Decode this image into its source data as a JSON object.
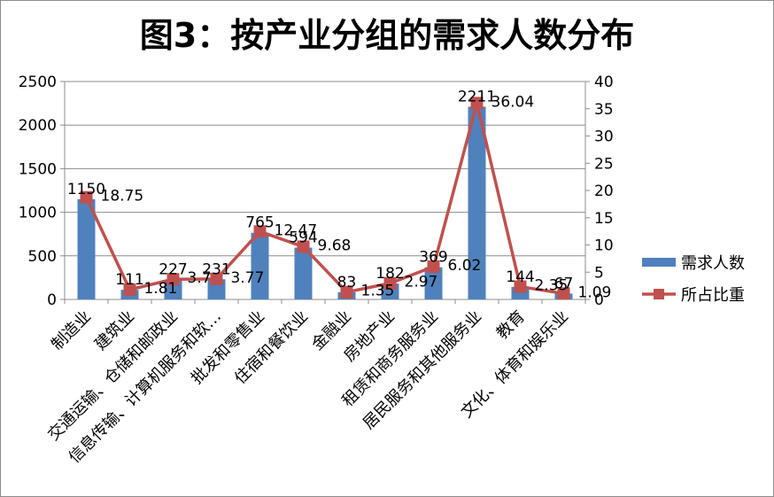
{
  "chart_data": {
    "type": "bar",
    "title": "图3：按产业分组的需求人数分布",
    "categories": [
      "制造业",
      "建筑业",
      "交通运输、仓储和邮政业",
      "信息传输、计算机服务和软…",
      "批发和零售业",
      "住宿和餐饮业",
      "金融业",
      "房地产业",
      "租赁和商务服务业",
      "居民服务和其他服务业",
      "教育",
      "文化、体育和娱乐业"
    ],
    "series": [
      {
        "name": "需求人数",
        "type": "bar",
        "axis": "left",
        "color": "#4f81bd",
        "values": [
          1150,
          111,
          227,
          231,
          765,
          594,
          83,
          182,
          369,
          2211,
          144,
          67
        ],
        "labels": [
          "1150",
          "111",
          "227",
          "231",
          "765",
          "594",
          "83",
          "182",
          "369",
          "2211",
          "144",
          "67"
        ]
      },
      {
        "name": "所占比重",
        "type": "line",
        "axis": "right",
        "color": "#c0504d",
        "values": [
          18.75,
          1.81,
          3.7,
          3.77,
          12.47,
          9.68,
          1.35,
          2.97,
          6.02,
          36.04,
          2.35,
          1.09
        ],
        "labels": [
          "18.75",
          "1.81",
          "3.7",
          "3.77",
          "12.47",
          "9.68",
          "1.35",
          "2.97",
          "6.02",
          "36.04",
          "2.35",
          "1.09"
        ]
      }
    ],
    "ylim_left": [
      0,
      2500
    ],
    "yticks_left": [
      "0",
      "500",
      "1000",
      "1500",
      "2000",
      "2500"
    ],
    "ylim_right": [
      0,
      40
    ],
    "yticks_right": [
      "0",
      "5",
      "10",
      "15",
      "20",
      "25",
      "30",
      "35",
      "40"
    ],
    "grid": true,
    "legend_position": "right"
  }
}
